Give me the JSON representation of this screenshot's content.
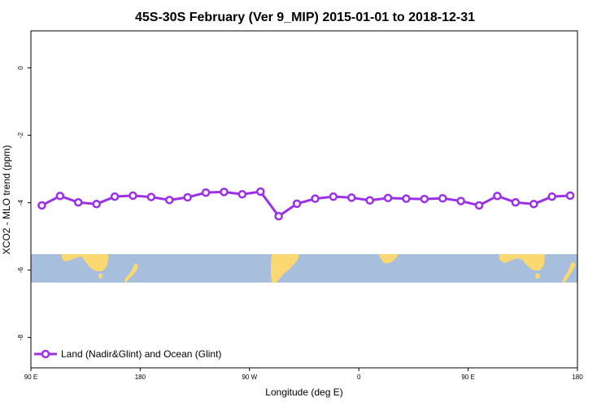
{
  "chart_data": {
    "type": "line",
    "title": "45S-30S February (Ver 9_MIP)   2015-01-01 to 2018-12-31",
    "xlabel": "Longitude (deg E)",
    "ylabel": "XCO2 - MLO trend (ppm)",
    "x_ticks": [
      {
        "value": 90,
        "label": "90 E"
      },
      {
        "value": 180,
        "label": "180"
      },
      {
        "value": 270,
        "label": "90 W"
      },
      {
        "value": 360,
        "label": "0"
      },
      {
        "value": 450,
        "label": "90 E"
      },
      {
        "value": 540,
        "label": "180"
      }
    ],
    "y_ticks": [
      {
        "value": 0,
        "label": "0"
      },
      {
        "value": -2,
        "label": "-2"
      },
      {
        "value": -4,
        "label": "-4"
      },
      {
        "value": -6,
        "label": "-6"
      },
      {
        "value": -8,
        "label": "-8"
      }
    ],
    "xlim": [
      90,
      540
    ],
    "ylim": [
      -8.9,
      1.1
    ],
    "grid": false,
    "legend_position": "bottom-left",
    "series": [
      {
        "name": "Land (Nadir&Glint) and Ocean (Glint)",
        "color": "#9b30e8",
        "x": [
          99,
          114,
          129,
          144,
          159,
          174,
          189,
          204,
          219,
          234,
          249,
          264,
          279,
          294,
          309,
          324,
          339,
          354,
          369,
          384,
          399,
          414,
          429,
          444,
          459,
          474,
          489,
          504,
          519,
          534
        ],
        "y": [
          -4.08,
          -3.8,
          -3.99,
          -4.04,
          -3.82,
          -3.79,
          -3.83,
          -3.92,
          -3.84,
          -3.7,
          -3.68,
          -3.75,
          -3.67,
          -4.4,
          -4.03,
          -3.88,
          -3.82,
          -3.85,
          -3.93,
          -3.86,
          -3.88,
          -3.89,
          -3.87,
          -3.95,
          -4.08,
          -3.8,
          -3.99,
          -4.04,
          -3.82,
          -3.79
        ]
      }
    ],
    "map_strip": {
      "lat_range": "45S-30S",
      "ocean_color": "#a8bedd",
      "land_color": "#fbd871"
    }
  }
}
